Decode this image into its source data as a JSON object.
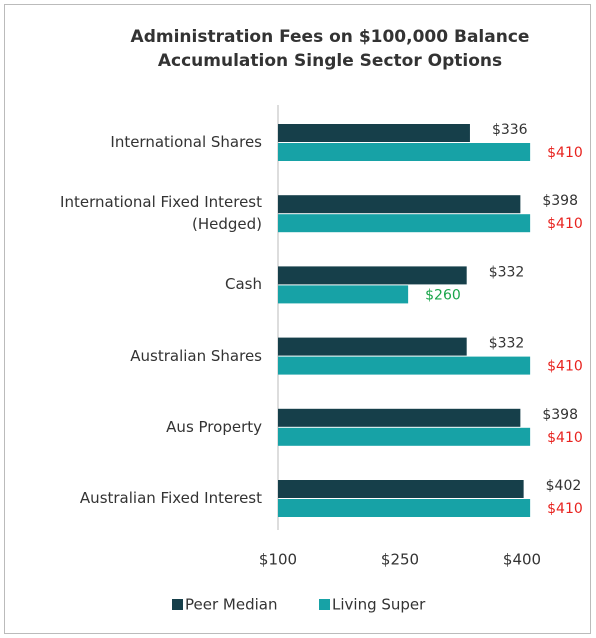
{
  "chart_data": {
    "type": "hbar",
    "title": "Administration Fees on $100,000 Balance",
    "subtitle": "Accumulation Single Sector Options",
    "categories": [
      "International Shares",
      "International Fixed Interest (Hedged)",
      "Cash",
      "Australian Shares",
      "Aus Property",
      "Australian Fixed Interest"
    ],
    "series": [
      {
        "name": "Peer Median",
        "color": "#163f4a",
        "values": [
          336,
          398,
          332,
          332,
          398,
          402
        ],
        "value_labels": [
          "$336",
          "$398",
          "$332",
          "$332",
          "$398",
          "$402"
        ],
        "value_label_colors": [
          "#333333",
          "#333333",
          "#333333",
          "#333333",
          "#333333",
          "#333333"
        ]
      },
      {
        "name": "Living Super",
        "color": "#17a2a6",
        "values": [
          410,
          410,
          260,
          410,
          410,
          410
        ],
        "value_labels": [
          "$410",
          "$410",
          "$260",
          "$410",
          "$410",
          "$410"
        ],
        "value_label_colors": [
          "#e8231f",
          "#e8231f",
          "#1aa54a",
          "#e8231f",
          "#e8231f",
          "#e8231f"
        ]
      }
    ],
    "xlim": [
      100,
      450
    ],
    "xticks": [
      {
        "value": 100,
        "label": "$100"
      },
      {
        "value": 250,
        "label": "$250"
      },
      {
        "value": 400,
        "label": "$400"
      }
    ],
    "legend": "bottom"
  }
}
